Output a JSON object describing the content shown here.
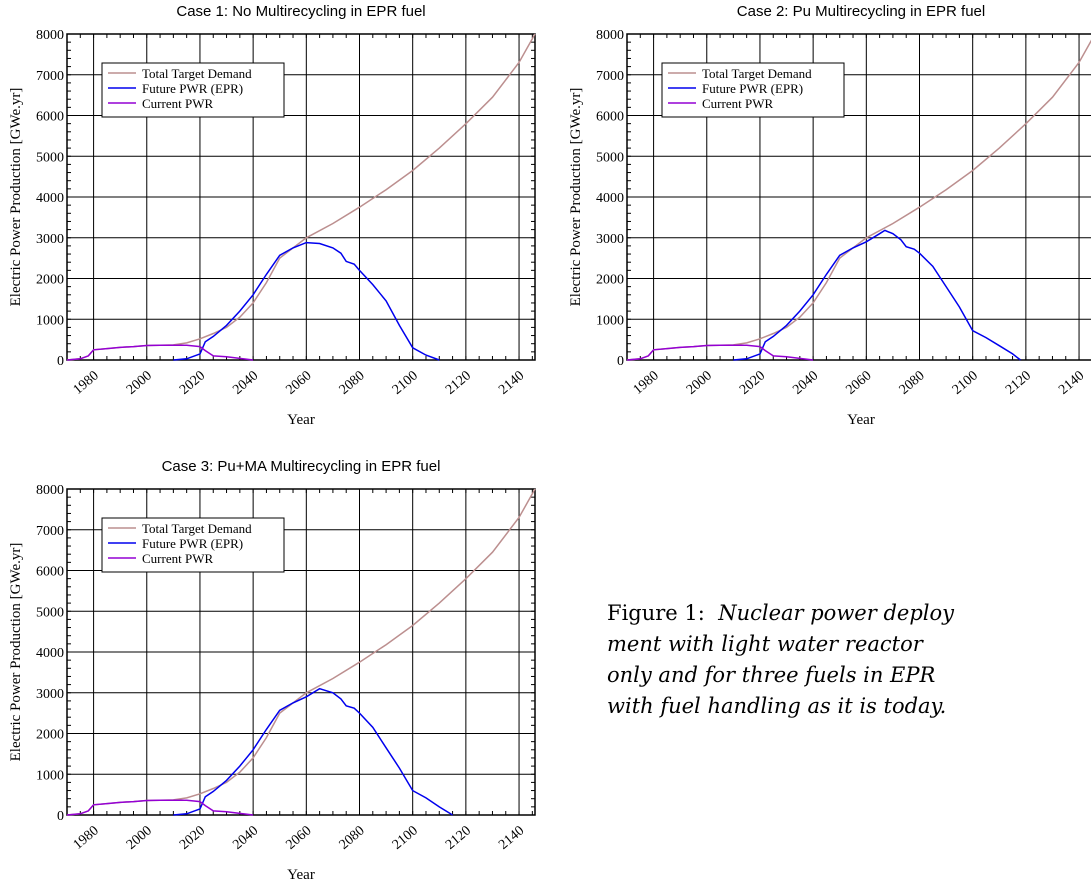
{
  "caption": {
    "label": "Figure 1:",
    "line1": "Nuclear power deploy",
    "line2": "ment with light water reactor",
    "line3": "only and for three fuels in EPR",
    "line4": "with fuel handling as it is today."
  },
  "chart_data": [
    {
      "type": "line",
      "title": "Case 1: No Multirecycling in EPR fuel",
      "xlabel": "Year",
      "ylabel": "Electric Power Production [GWe.yr]",
      "xlim": [
        1970,
        2146
      ],
      "ylim": [
        0,
        8000
      ],
      "xticks": [
        1980,
        2000,
        2020,
        2040,
        2060,
        2080,
        2100,
        2120,
        2140
      ],
      "yticks": [
        0,
        1000,
        2000,
        3000,
        4000,
        5000,
        6000,
        7000,
        8000
      ],
      "grid": true,
      "legend_position": "top-left",
      "series": [
        {
          "name": "Total Target Demand",
          "color": "#bc8f8f",
          "x": [
            1970,
            1975,
            1978,
            1980,
            1985,
            1990,
            1995,
            2000,
            2005,
            2010,
            2015,
            2020,
            2025,
            2030,
            2035,
            2040,
            2045,
            2050,
            2060,
            2070,
            2080,
            2090,
            2100,
            2110,
            2120,
            2130,
            2140,
            2146
          ],
          "y": [
            0,
            30,
            100,
            250,
            280,
            310,
            330,
            355,
            360,
            370,
            420,
            520,
            650,
            800,
            1050,
            1400,
            1900,
            2500,
            3000,
            3350,
            3750,
            4180,
            4650,
            5200,
            5800,
            6450,
            7300,
            8000
          ]
        },
        {
          "name": "Future PWR (EPR)",
          "color": "#0000ee",
          "x": [
            2010,
            2015,
            2020,
            2022,
            2025,
            2030,
            2035,
            2040,
            2045,
            2050,
            2055,
            2060,
            2065,
            2070,
            2073,
            2075,
            2078,
            2080,
            2085,
            2090,
            2095,
            2100,
            2105,
            2110
          ],
          "y": [
            0,
            30,
            150,
            450,
            580,
            850,
            1200,
            1600,
            2100,
            2570,
            2750,
            2880,
            2860,
            2750,
            2620,
            2420,
            2350,
            2200,
            1850,
            1450,
            850,
            300,
            120,
            0
          ]
        },
        {
          "name": "Current PWR",
          "color": "#9400d3",
          "x": [
            1970,
            1975,
            1978,
            1980,
            1985,
            1990,
            1995,
            2000,
            2005,
            2010,
            2015,
            2020,
            2022,
            2025,
            2030,
            2035,
            2040
          ],
          "y": [
            0,
            30,
            100,
            250,
            280,
            310,
            330,
            355,
            360,
            360,
            360,
            330,
            230,
            100,
            80,
            40,
            0
          ]
        }
      ]
    },
    {
      "type": "line",
      "title": "Case 2: Pu Multirecycling in EPR fuel",
      "xlabel": "Year",
      "ylabel": "Electric Power Production [GWe.yr]",
      "xlim": [
        1970,
        2146
      ],
      "ylim": [
        0,
        8000
      ],
      "xticks": [
        1980,
        2000,
        2020,
        2040,
        2060,
        2080,
        2100,
        2120,
        2140
      ],
      "yticks": [
        0,
        1000,
        2000,
        3000,
        4000,
        5000,
        6000,
        7000,
        8000
      ],
      "grid": true,
      "legend_position": "top-left",
      "series": [
        {
          "name": "Total Target Demand",
          "color": "#bc8f8f",
          "x": [
            1970,
            1975,
            1978,
            1980,
            1985,
            1990,
            1995,
            2000,
            2005,
            2010,
            2015,
            2020,
            2025,
            2030,
            2035,
            2040,
            2045,
            2050,
            2060,
            2070,
            2080,
            2090,
            2100,
            2110,
            2120,
            2130,
            2140,
            2146
          ],
          "y": [
            0,
            30,
            100,
            250,
            280,
            310,
            330,
            355,
            360,
            370,
            420,
            520,
            650,
            800,
            1050,
            1400,
            1900,
            2500,
            3000,
            3350,
            3750,
            4180,
            4650,
            5200,
            5800,
            6450,
            7300,
            8000
          ]
        },
        {
          "name": "Future PWR (EPR)",
          "color": "#0000ee",
          "x": [
            2010,
            2015,
            2020,
            2022,
            2025,
            2030,
            2035,
            2040,
            2045,
            2050,
            2055,
            2060,
            2065,
            2067,
            2070,
            2073,
            2075,
            2078,
            2080,
            2085,
            2090,
            2095,
            2100,
            2105,
            2110,
            2115,
            2118
          ],
          "y": [
            0,
            30,
            150,
            450,
            580,
            850,
            1200,
            1600,
            2100,
            2570,
            2750,
            2900,
            3100,
            3180,
            3100,
            2950,
            2780,
            2720,
            2620,
            2300,
            1800,
            1300,
            720,
            550,
            350,
            150,
            0
          ]
        },
        {
          "name": "Current PWR",
          "color": "#9400d3",
          "x": [
            1970,
            1975,
            1978,
            1980,
            1985,
            1990,
            1995,
            2000,
            2005,
            2010,
            2015,
            2020,
            2022,
            2025,
            2030,
            2035,
            2040
          ],
          "y": [
            0,
            30,
            100,
            250,
            280,
            310,
            330,
            355,
            360,
            360,
            360,
            330,
            230,
            100,
            80,
            40,
            0
          ]
        }
      ]
    },
    {
      "type": "line",
      "title": "Case 3: Pu+MA Multirecycling in EPR fuel",
      "xlabel": "Year",
      "ylabel": "Electric Power Production [GWe.yr]",
      "xlim": [
        1970,
        2146
      ],
      "ylim": [
        0,
        8000
      ],
      "xticks": [
        1980,
        2000,
        2020,
        2040,
        2060,
        2080,
        2100,
        2120,
        2140
      ],
      "yticks": [
        0,
        1000,
        2000,
        3000,
        4000,
        5000,
        6000,
        7000,
        8000
      ],
      "grid": true,
      "legend_position": "top-left",
      "series": [
        {
          "name": "Total Target Demand",
          "color": "#bc8f8f",
          "x": [
            1970,
            1975,
            1978,
            1980,
            1985,
            1990,
            1995,
            2000,
            2005,
            2010,
            2015,
            2020,
            2025,
            2030,
            2035,
            2040,
            2045,
            2050,
            2060,
            2070,
            2080,
            2090,
            2100,
            2110,
            2120,
            2130,
            2140,
            2146
          ],
          "y": [
            0,
            30,
            100,
            250,
            280,
            310,
            330,
            355,
            360,
            370,
            420,
            520,
            650,
            800,
            1050,
            1400,
            1900,
            2500,
            3000,
            3350,
            3750,
            4180,
            4650,
            5200,
            5800,
            6450,
            7300,
            8000
          ]
        },
        {
          "name": "Future PWR (EPR)",
          "color": "#0000ee",
          "x": [
            2010,
            2015,
            2020,
            2022,
            2025,
            2030,
            2035,
            2040,
            2045,
            2050,
            2055,
            2060,
            2065,
            2070,
            2073,
            2075,
            2078,
            2080,
            2085,
            2090,
            2095,
            2100,
            2105,
            2110,
            2115
          ],
          "y": [
            0,
            30,
            150,
            450,
            580,
            850,
            1200,
            1600,
            2100,
            2570,
            2750,
            2900,
            3100,
            3000,
            2850,
            2680,
            2620,
            2500,
            2150,
            1650,
            1150,
            600,
            420,
            200,
            0
          ]
        },
        {
          "name": "Current PWR",
          "color": "#9400d3",
          "x": [
            1970,
            1975,
            1978,
            1980,
            1985,
            1990,
            1995,
            2000,
            2005,
            2010,
            2015,
            2020,
            2022,
            2025,
            2030,
            2035,
            2040
          ],
          "y": [
            0,
            30,
            100,
            250,
            280,
            310,
            330,
            355,
            360,
            360,
            360,
            330,
            230,
            100,
            80,
            40,
            0
          ]
        }
      ]
    }
  ]
}
